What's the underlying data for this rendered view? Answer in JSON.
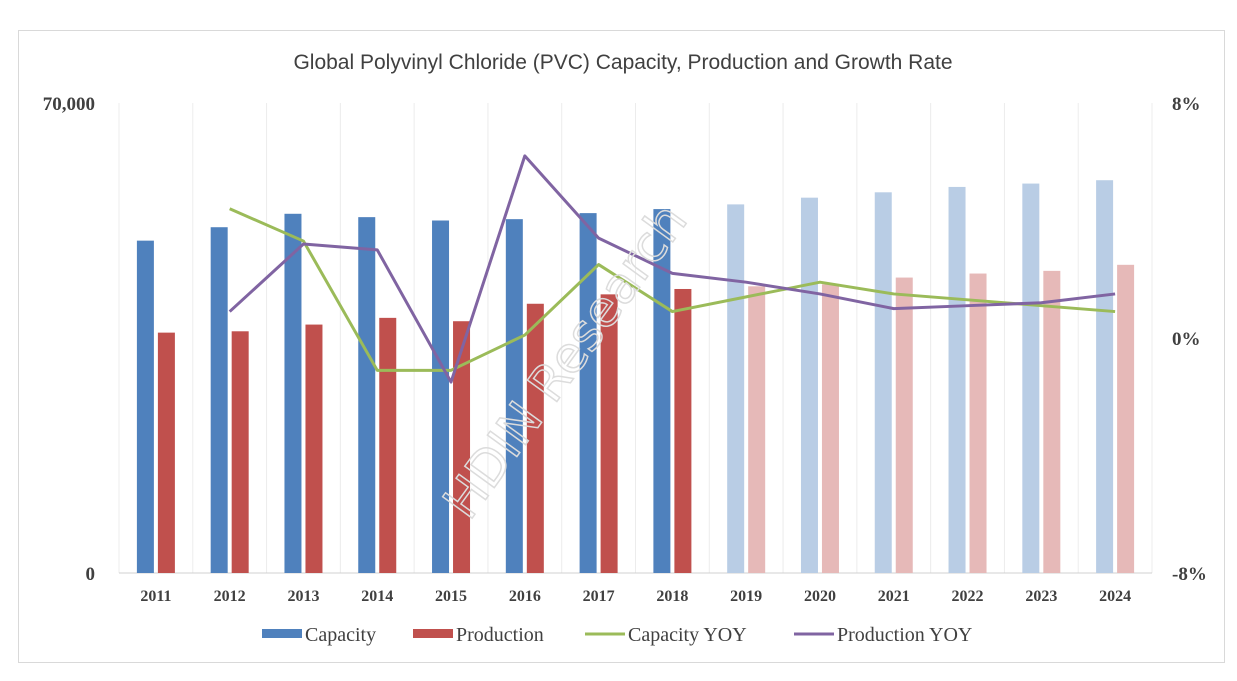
{
  "chart_data": {
    "type": "bar",
    "title": "Global Polyvinyl Chloride (PVC) Capacity, Production and Growth Rate",
    "categories": [
      "2011",
      "2012",
      "2013",
      "2014",
      "2015",
      "2016",
      "2017",
      "2018",
      "2019",
      "2020",
      "2021",
      "2022",
      "2023",
      "2024"
    ],
    "forecast_start_index": 8,
    "ylim_left": [
      0,
      70000
    ],
    "ylim_right": [
      -8,
      8
    ],
    "left_ticks": [
      "70,000",
      "0"
    ],
    "right_ticks": [
      "8%",
      "0%",
      "-8%"
    ],
    "grid": "vertical",
    "legend_position": "bottom",
    "watermark": "HDIN Research",
    "colors": {
      "capacity": "#4f81bd",
      "capacity_forecast": "#b9cde5",
      "production": "#c0504d",
      "production_forecast": "#e6b9b8",
      "capacity_yoy": "#9bbb59",
      "production_yoy": "#8064a2"
    },
    "series": [
      {
        "name": "Capacity",
        "type": "bar",
        "axis": "left",
        "values": [
          49500,
          51500,
          53500,
          53000,
          52500,
          52700,
          53600,
          54200,
          54900,
          55900,
          56700,
          57500,
          58000,
          58500
        ]
      },
      {
        "name": "Production",
        "type": "bar",
        "axis": "left",
        "values": [
          35800,
          36000,
          37000,
          38000,
          37500,
          40100,
          41500,
          42300,
          42700,
          43000,
          44000,
          44600,
          45000,
          45900
        ]
      },
      {
        "name": "Capacity YOY",
        "type": "line",
        "axis": "right",
        "values": [
          null,
          4.4,
          3.3,
          -1.1,
          -1.1,
          0.1,
          2.5,
          0.9,
          1.4,
          1.9,
          1.5,
          1.3,
          1.1,
          0.9
        ]
      },
      {
        "name": "Production YOY",
        "type": "line",
        "axis": "right",
        "values": [
          null,
          0.9,
          3.2,
          3.0,
          -1.5,
          6.2,
          3.4,
          2.2,
          1.9,
          1.5,
          1.0,
          1.1,
          1.2,
          1.5
        ]
      }
    ]
  }
}
